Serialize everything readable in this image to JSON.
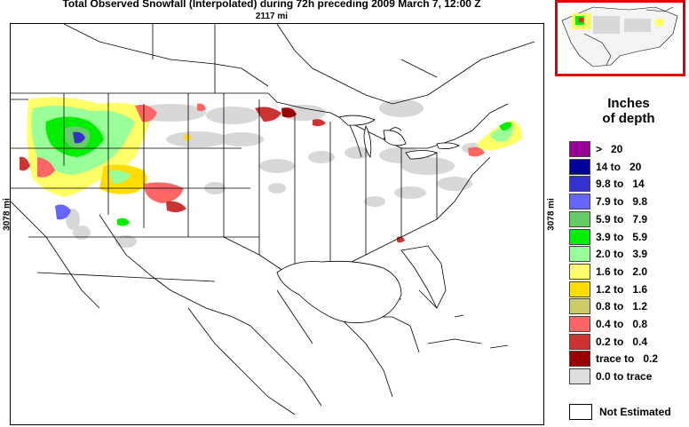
{
  "header": {
    "title": "Total Observed Snowfall (Interpolated) during 72h preceding 2009 March 7, 12:00 Z",
    "width_label": "2117 mi",
    "height_label": "3078 mi"
  },
  "legend": {
    "title_line1": "Inches",
    "title_line2": "of depth",
    "items": [
      {
        "label": ">   20",
        "color": "#990099"
      },
      {
        "label": "14 to   20",
        "color": "#000099"
      },
      {
        "label": "9.8 to   14",
        "color": "#3333cc"
      },
      {
        "label": "7.9 to   9.8",
        "color": "#6666ff"
      },
      {
        "label": "5.9 to   7.9",
        "color": "#66cc66"
      },
      {
        "label": "3.9 to   5.9",
        "color": "#00ee00"
      },
      {
        "label": "2.0 to   3.9",
        "color": "#99ff99"
      },
      {
        "label": "1.6 to   2.0",
        "color": "#ffff66"
      },
      {
        "label": "1.2 to   1.6",
        "color": "#ffdd00"
      },
      {
        "label": "0.8 to   1.2",
        "color": "#cccc66"
      },
      {
        "label": "0.4 to   0.8",
        "color": "#ff6666"
      },
      {
        "label": "0.2 to   0.4",
        "color": "#cc3333"
      },
      {
        "label": "trace to   0.2",
        "color": "#990000"
      },
      {
        "label": "0.0 to trace",
        "color": "#dddddd"
      }
    ],
    "not_estimated": {
      "label": "Not Estimated",
      "color": "#ffffff"
    }
  },
  "colors": {
    "inset_border": "#e00000",
    "map_line": "#000000"
  },
  "icons": {
    "map": "north-america-map",
    "inset": "overview-map"
  }
}
